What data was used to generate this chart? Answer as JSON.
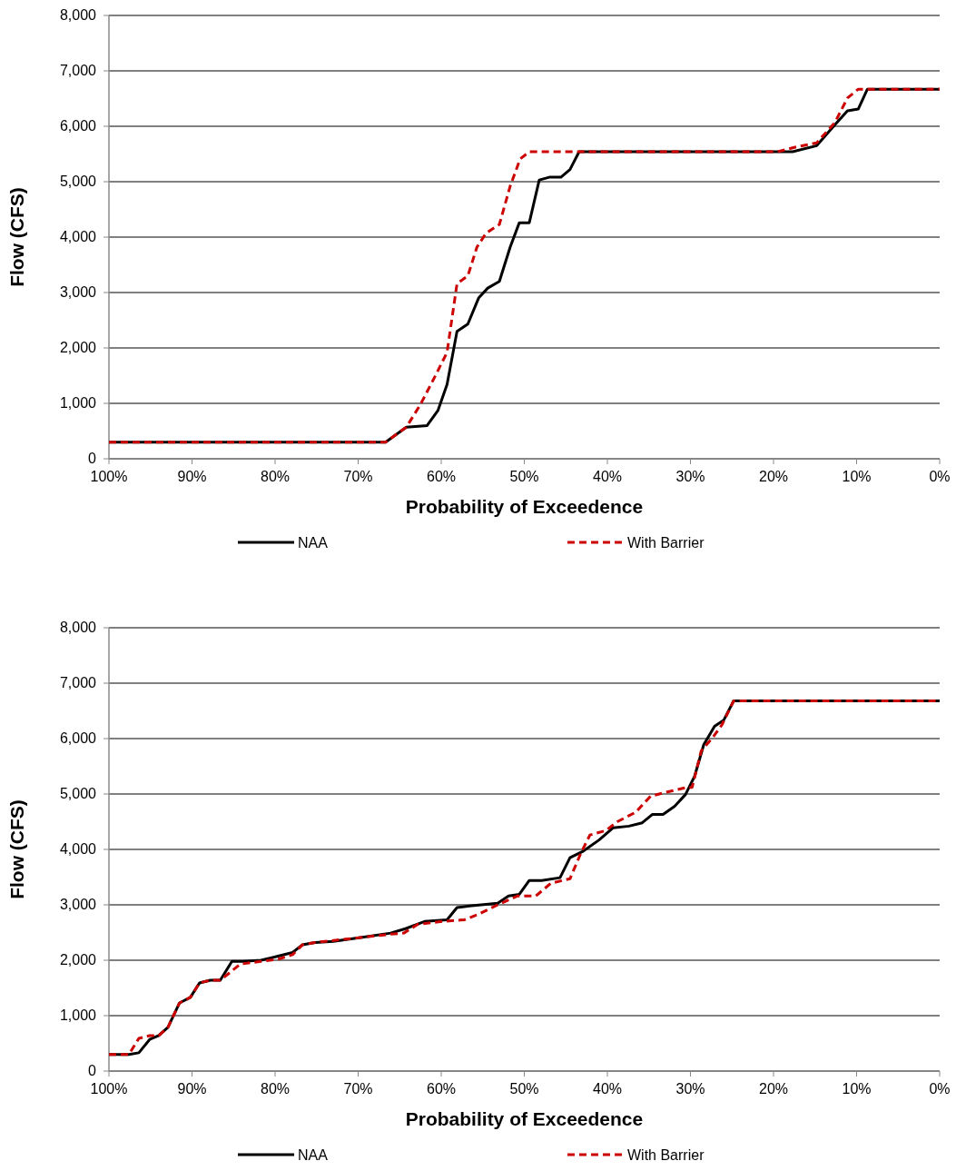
{
  "chart_data": [
    {
      "type": "line",
      "xlabel": "Probability of Exceedence",
      "ylabel": "Flow (CFS)",
      "xlim": [
        100,
        0
      ],
      "ylim": [
        0,
        8000
      ],
      "xticks": [
        {
          "value": 100,
          "label": "100%"
        },
        {
          "value": 90,
          "label": "90%"
        },
        {
          "value": 80,
          "label": "80%"
        },
        {
          "value": 70,
          "label": "70%"
        },
        {
          "value": 60,
          "label": "60%"
        },
        {
          "value": 50,
          "label": "50%"
        },
        {
          "value": 40,
          "label": "40%"
        },
        {
          "value": 30,
          "label": "30%"
        },
        {
          "value": 20,
          "label": "20%"
        },
        {
          "value": 10,
          "label": "10%"
        },
        {
          "value": 0,
          "label": "0%"
        }
      ],
      "yticks": [
        {
          "value": 0,
          "label": "0"
        },
        {
          "value": 1000,
          "label": "1,000"
        },
        {
          "value": 2000,
          "label": "2,000"
        },
        {
          "value": 3000,
          "label": "3,000"
        },
        {
          "value": 4000,
          "label": "4,000"
        },
        {
          "value": 5000,
          "label": "5,000"
        },
        {
          "value": 6000,
          "label": "6,000"
        },
        {
          "value": 7000,
          "label": "7,000"
        },
        {
          "value": 8000,
          "label": "8,000"
        }
      ],
      "grid": "y",
      "legend": "bottom",
      "marker": "none",
      "series": [
        {
          "name": "NAA",
          "color": "#000000",
          "line_style": "solid",
          "x": [
            100,
            66.7,
            64.2,
            61.7,
            60.4,
            59.3,
            58.1,
            56.8,
            55.5,
            54.4,
            53.0,
            51.7,
            50.6,
            49.4,
            48.2,
            47.0,
            45.6,
            44.5,
            43.4,
            17.7,
            14.8,
            12.6,
            11.1,
            9.8,
            8.7,
            0
          ],
          "values": [
            300,
            300,
            570,
            600,
            870,
            1340,
            2300,
            2430,
            2900,
            3080,
            3200,
            3820,
            4260,
            4260,
            5030,
            5080,
            5080,
            5220,
            5540,
            5540,
            5650,
            6030,
            6280,
            6310,
            6670,
            6670
          ]
        },
        {
          "name": "With Barrier",
          "color": "#cc0000",
          "line_style": "dashed",
          "x": [
            100,
            66.7,
            64.2,
            62.5,
            60.7,
            59.3,
            58.1,
            56.8,
            55.7,
            54.6,
            53.0,
            51.7,
            50.5,
            49.4,
            19.5,
            17.5,
            14.8,
            12.6,
            11.1,
            9.8,
            0
          ],
          "values": [
            300,
            300,
            570,
            980,
            1500,
            1920,
            3160,
            3300,
            3820,
            4070,
            4230,
            4920,
            5410,
            5540,
            5540,
            5620,
            5700,
            6070,
            6510,
            6670,
            6670
          ]
        }
      ]
    },
    {
      "type": "line",
      "xlabel": "Probability of Exceedence",
      "ylabel": "Flow (CFS)",
      "xlim": [
        100,
        0
      ],
      "ylim": [
        0,
        8000
      ],
      "xticks": [
        {
          "value": 100,
          "label": "100%"
        },
        {
          "value": 90,
          "label": "90%"
        },
        {
          "value": 80,
          "label": "80%"
        },
        {
          "value": 70,
          "label": "70%"
        },
        {
          "value": 60,
          "label": "60%"
        },
        {
          "value": 50,
          "label": "50%"
        },
        {
          "value": 40,
          "label": "40%"
        },
        {
          "value": 30,
          "label": "30%"
        },
        {
          "value": 20,
          "label": "20%"
        },
        {
          "value": 10,
          "label": "10%"
        },
        {
          "value": 0,
          "label": "0%"
        }
      ],
      "yticks": [
        {
          "value": 0,
          "label": "0"
        },
        {
          "value": 1000,
          "label": "1,000"
        },
        {
          "value": 2000,
          "label": "2,000"
        },
        {
          "value": 3000,
          "label": "3,000"
        },
        {
          "value": 4000,
          "label": "4,000"
        },
        {
          "value": 5000,
          "label": "5,000"
        },
        {
          "value": 6000,
          "label": "6,000"
        },
        {
          "value": 7000,
          "label": "7,000"
        },
        {
          "value": 8000,
          "label": "8,000"
        }
      ],
      "grid": "y",
      "legend": "bottom",
      "marker": "none",
      "series": [
        {
          "name": "NAA",
          "color": "#000000",
          "line_style": "solid",
          "x": [
            100,
            97.6,
            96.4,
            95.1,
            94.0,
            92.9,
            91.5,
            90.2,
            89.1,
            87.8,
            86.6,
            85.2,
            83.9,
            81.7,
            80.3,
            77.9,
            76.7,
            75.2,
            73.0,
            69.7,
            66.1,
            64.3,
            62.0,
            59.3,
            58.1,
            56.6,
            53.2,
            51.9,
            50.6,
            49.4,
            47.9,
            45.7,
            44.5,
            43.0,
            41.0,
            39.3,
            37.4,
            35.8,
            34.6,
            33.3,
            31.9,
            30.6,
            29.5,
            28.4,
            27.1,
            26.0,
            24.8,
            0
          ],
          "values": [
            300,
            300,
            330,
            570,
            640,
            790,
            1230,
            1330,
            1590,
            1640,
            1640,
            1980,
            1980,
            2000,
            2050,
            2140,
            2280,
            2320,
            2340,
            2410,
            2490,
            2570,
            2700,
            2730,
            2950,
            2980,
            3030,
            3160,
            3190,
            3440,
            3440,
            3490,
            3850,
            3960,
            4170,
            4390,
            4420,
            4480,
            4630,
            4630,
            4780,
            4990,
            5320,
            5890,
            6220,
            6330,
            6680,
            6680
          ]
        },
        {
          "name": "With Barrier",
          "color": "#cc0000",
          "line_style": "dashed",
          "x": [
            100,
            97.6,
            96.4,
            95.1,
            94.0,
            92.9,
            91.5,
            90.2,
            89.1,
            87.8,
            86.6,
            85.5,
            84.2,
            81.7,
            79.6,
            77.9,
            76.7,
            75.2,
            69.7,
            66.1,
            64.5,
            62.8,
            59.9,
            57.2,
            55.5,
            53.2,
            50.8,
            48.6,
            46.8,
            44.5,
            43.2,
            42.1,
            40.2,
            38.8,
            36.6,
            34.8,
            33.0,
            30.4,
            29.8,
            28.7,
            27.3,
            26.2,
            24.8,
            0
          ],
          "values": [
            300,
            300,
            590,
            640,
            640,
            790,
            1230,
            1330,
            1590,
            1640,
            1640,
            1770,
            1930,
            1980,
            2020,
            2100,
            2280,
            2320,
            2410,
            2470,
            2490,
            2650,
            2700,
            2730,
            2830,
            3000,
            3160,
            3160,
            3390,
            3470,
            3930,
            4260,
            4340,
            4500,
            4670,
            4960,
            5030,
            5120,
            5120,
            5780,
            6020,
            6250,
            6680,
            6680
          ]
        }
      ]
    }
  ]
}
